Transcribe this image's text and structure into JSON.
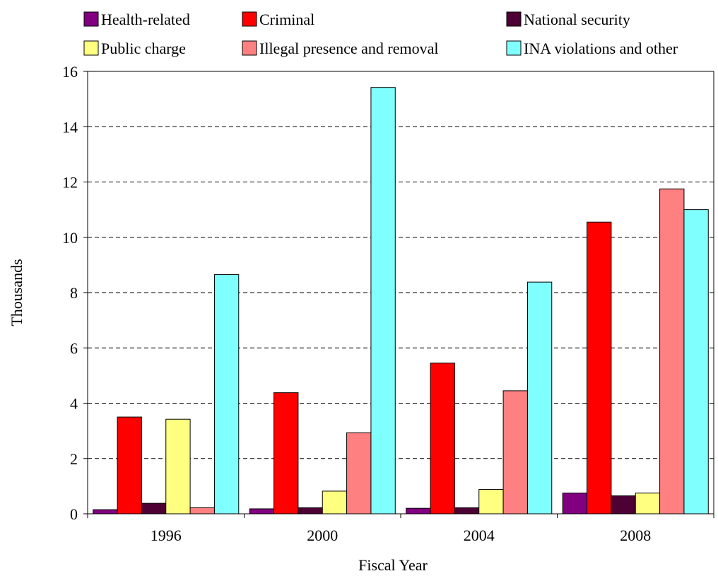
{
  "chart_data": {
    "type": "bar",
    "categories": [
      "1996",
      "2000",
      "2004",
      "2008"
    ],
    "series": [
      {
        "name": "Health-related",
        "color": "#800080",
        "values": [
          0.15,
          0.18,
          0.2,
          0.75
        ]
      },
      {
        "name": "Criminal",
        "color": "#ff0000",
        "values": [
          3.5,
          4.38,
          5.45,
          10.55
        ]
      },
      {
        "name": "National security",
        "color": "#4d0033",
        "values": [
          0.38,
          0.22,
          0.22,
          0.65
        ]
      },
      {
        "name": "Public charge",
        "color": "#ffff80",
        "values": [
          3.42,
          0.82,
          0.88,
          0.75
        ]
      },
      {
        "name": "Illegal presence and removal",
        "color": "#ff8080",
        "values": [
          0.22,
          2.93,
          4.45,
          11.75
        ]
      },
      {
        "name": "INA violations and other",
        "color": "#80ffff",
        "values": [
          8.65,
          15.42,
          8.38,
          11.0
        ]
      }
    ],
    "xlabel": "Fiscal Year",
    "ylabel": "Thousands",
    "ylim": [
      0,
      16
    ],
    "yticks": [
      "0",
      "2",
      "4",
      "6",
      "8",
      "10",
      "12",
      "14",
      "16"
    ],
    "grid": true,
    "legend_position": "top"
  }
}
